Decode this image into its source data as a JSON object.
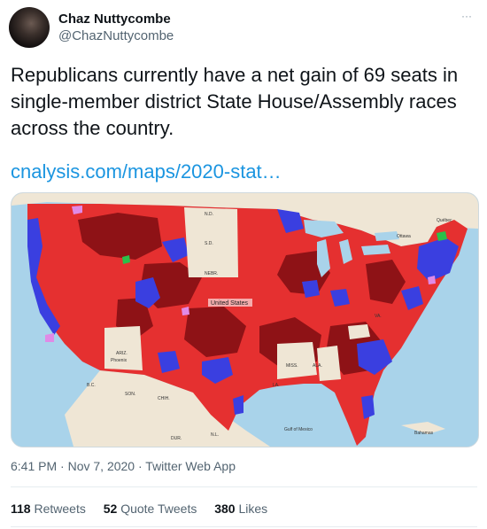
{
  "author": {
    "name": "Chaz Nuttycombe",
    "handle": "@ChazNuttycombe"
  },
  "more_label": "···",
  "tweet": {
    "text": "Republicans currently have a net gain of 69 seats in single-member district State House/Assembly races across the country.",
    "link": "cnalysis.com/maps/2020-stat…"
  },
  "map": {
    "labels": {
      "united_states": "United States",
      "nd": "N.D.",
      "sd": "S.D.",
      "nebr": "NEBR.",
      "ariz": "ARIZ.",
      "phoenix": "Phoenix",
      "miss": "MISS.",
      "ala": "ALA.",
      "la": "LA.",
      "chih": "CHIH.",
      "son": "SON.",
      "dur": "DUR.",
      "bc": "B.C.",
      "nl": "N.L.",
      "ottawa": "Ottawa",
      "quebec": "Québec",
      "gulf": "Gulf of Mexico",
      "bahamas": "Bahamas",
      "va": "VA."
    },
    "colors": {
      "republican": "#e53030",
      "republican_dark": "#8e1216",
      "democrat": "#3a3fe0",
      "democrat_dark": "#1d1f8a",
      "pink": "#e08ae6",
      "green": "#2bbf4a",
      "land": "#efe6d5",
      "water": "#a9d3ea"
    }
  },
  "timestamp": {
    "time": "6:41 PM",
    "date": "Nov 7, 2020",
    "source": "Twitter Web App",
    "sep": "·"
  },
  "stats": {
    "retweets_count": "118",
    "retweets_label": "Retweets",
    "quotes_count": "52",
    "quotes_label": "Quote Tweets",
    "likes_count": "380",
    "likes_label": "Likes"
  }
}
